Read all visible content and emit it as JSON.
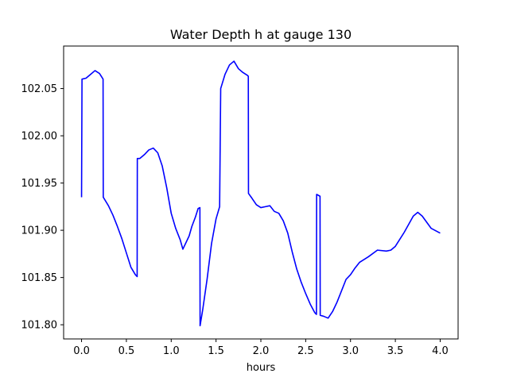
{
  "chart_data": {
    "type": "line",
    "title": "Water Depth h at gauge 130",
    "xlabel": "hours",
    "ylabel": "",
    "xlim": [
      -0.2,
      4.2
    ],
    "ylim": [
      101.785,
      102.095
    ],
    "xticks": [
      0.0,
      0.5,
      1.0,
      1.5,
      2.0,
      2.5,
      3.0,
      3.5,
      4.0
    ],
    "xtick_labels": [
      "0.0",
      "0.5",
      "1.0",
      "1.5",
      "2.0",
      "2.5",
      "3.0",
      "3.5",
      "4.0"
    ],
    "yticks": [
      101.8,
      101.85,
      101.9,
      101.95,
      102.0,
      102.05
    ],
    "ytick_labels": [
      "101.80",
      "101.85",
      "101.90",
      "101.95",
      "102.00",
      "102.05"
    ],
    "grid": false,
    "series": [
      {
        "name": "",
        "color": "#0000ff",
        "x": [
          0.0,
          0.005,
          0.05,
          0.1,
          0.15,
          0.2,
          0.24,
          0.242,
          0.3,
          0.35,
          0.4,
          0.45,
          0.5,
          0.55,
          0.6,
          0.62,
          0.622,
          0.65,
          0.7,
          0.75,
          0.8,
          0.85,
          0.9,
          0.95,
          1.0,
          1.05,
          1.1,
          1.13,
          1.17,
          1.2,
          1.23,
          1.27,
          1.3,
          1.32,
          1.322,
          1.35,
          1.4,
          1.45,
          1.5,
          1.54,
          1.552,
          1.6,
          1.65,
          1.7,
          1.75,
          1.8,
          1.85,
          1.86,
          1.862,
          1.9,
          1.95,
          2.0,
          2.05,
          2.1,
          2.15,
          2.2,
          2.25,
          2.3,
          2.35,
          2.4,
          2.45,
          2.5,
          2.55,
          2.6,
          2.62,
          2.622,
          2.66,
          2.662,
          2.7,
          2.75,
          2.8,
          2.85,
          2.9,
          2.95,
          3.0,
          3.05,
          3.1,
          3.2,
          3.3,
          3.4,
          3.45,
          3.5,
          3.6,
          3.7,
          3.75,
          3.8,
          3.9,
          4.0
        ],
        "y": [
          101.935,
          102.06,
          102.061,
          102.065,
          102.069,
          102.066,
          102.06,
          101.935,
          101.926,
          101.916,
          101.904,
          101.891,
          101.876,
          101.861,
          101.853,
          101.851,
          101.976,
          101.976,
          101.98,
          101.985,
          101.987,
          101.982,
          101.968,
          101.945,
          101.918,
          101.902,
          101.89,
          101.88,
          101.888,
          101.894,
          101.904,
          101.914,
          101.923,
          101.924,
          101.799,
          101.815,
          101.848,
          101.886,
          101.912,
          101.925,
          102.05,
          102.065,
          102.075,
          102.079,
          102.071,
          102.067,
          102.064,
          102.063,
          101.939,
          101.934,
          101.927,
          101.924,
          101.925,
          101.926,
          101.92,
          101.918,
          101.91,
          101.897,
          101.877,
          101.859,
          101.845,
          101.833,
          101.822,
          101.813,
          101.811,
          101.938,
          101.936,
          101.81,
          101.809,
          101.807,
          101.814,
          101.824,
          101.836,
          101.848,
          101.853,
          101.86,
          101.866,
          101.872,
          101.879,
          101.878,
          101.879,
          101.883,
          101.898,
          101.915,
          101.919,
          101.915,
          101.902,
          101.897
        ]
      }
    ]
  }
}
